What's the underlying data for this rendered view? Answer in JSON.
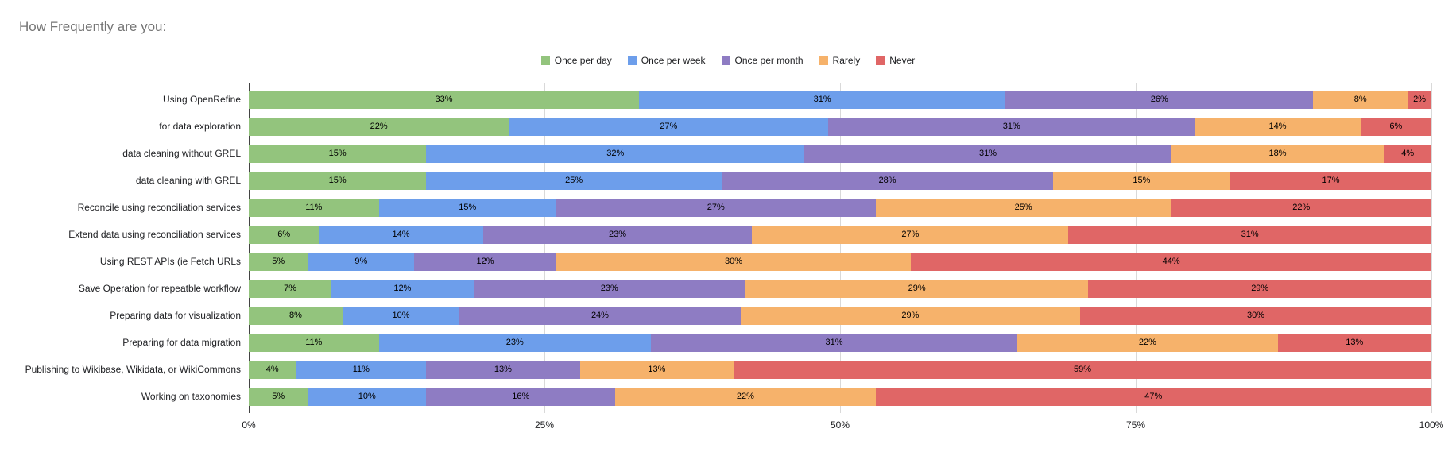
{
  "title": "How Frequently are you:",
  "chart_data": {
    "type": "bar",
    "stacked": true,
    "percent_stacked": true,
    "orientation": "horizontal",
    "title": "How Frequently are you:",
    "legend_position": "top",
    "grid": true,
    "unit": "%",
    "categories": [
      "Using OpenRefine",
      "for data exploration",
      "data cleaning without GREL",
      "data cleaning with GREL",
      "Reconcile using reconciliation services",
      "Extend data using reconciliation services",
      "Using REST APIs (ie Fetch URLs",
      "Save Operation for repeatble workflow",
      "Preparing data for visualization",
      "Preparing for data migration",
      "Publishing to Wikibase, Wikidata, or WikiCommons",
      "Working on taxonomies"
    ],
    "series": [
      {
        "name": "Once per day",
        "color": "#93c47d",
        "values": [
          33,
          22,
          15,
          15,
          11,
          6,
          5,
          7,
          8,
          11,
          4,
          5
        ]
      },
      {
        "name": "Once per week",
        "color": "#6d9eeb",
        "values": [
          31,
          27,
          32,
          25,
          15,
          14,
          9,
          12,
          10,
          23,
          11,
          10
        ]
      },
      {
        "name": "Once per month",
        "color": "#8e7cc3",
        "values": [
          26,
          31,
          31,
          28,
          27,
          23,
          12,
          23,
          24,
          31,
          13,
          16
        ]
      },
      {
        "name": "Rarely",
        "color": "#f6b26b",
        "values": [
          8,
          14,
          18,
          15,
          25,
          27,
          30,
          29,
          29,
          22,
          13,
          22
        ]
      },
      {
        "name": "Never",
        "color": "#e06666",
        "values": [
          2,
          6,
          4,
          17,
          22,
          31,
          44,
          29,
          30,
          13,
          59,
          47
        ]
      }
    ],
    "x_axis": {
      "ticks": [
        "0%",
        "25%",
        "50%",
        "75%",
        "100%"
      ],
      "range": [
        0,
        100
      ]
    }
  }
}
